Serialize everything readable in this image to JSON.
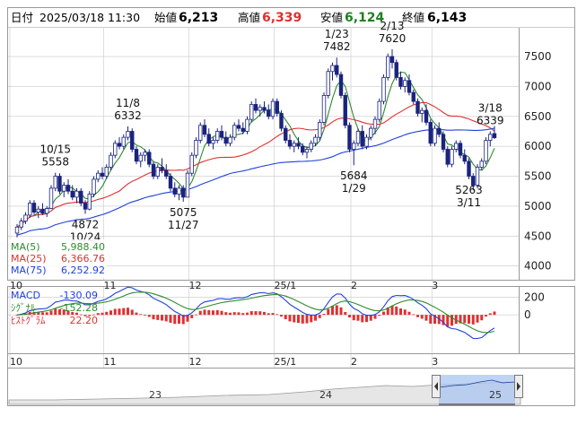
{
  "header": {
    "date_label": "日付",
    "datetime": "2025/03/18 11:30",
    "open_label": "始値",
    "open_value": "6,213",
    "high_label": "高値",
    "high_value": "6,339",
    "low_label": "安値",
    "low_value": "6,124",
    "close_label": "終値",
    "close_value": "6,143"
  },
  "legend_ma": [
    {
      "label": "MA(5)",
      "value": "5,988.40",
      "color": "#2e8b2e"
    },
    {
      "label": "MA(25)",
      "value": "6,366.76",
      "color": "#e03030"
    },
    {
      "label": "MA(75)",
      "value": "6,252.92",
      "color": "#2040e0"
    }
  ],
  "legend_macd": [
    {
      "label": "MACD",
      "value": "-130.09",
      "color": "#2040e0"
    },
    {
      "label": "ｼｸﾞﾅﾙ",
      "value": "-152.28",
      "color": "#2e8b2e"
    },
    {
      "label": "ﾋｽﾄｸﾞﾗﾑ",
      "value": "22.20",
      "color": "#e03030"
    }
  ],
  "colors": {
    "up": "#ffffff",
    "down": "#1a237e",
    "candle_outline": "#1a237e",
    "hist": "#e03030",
    "grid": "#c8c8c8",
    "nav_fill": "#aac4f0"
  },
  "chart_data": {
    "type": "candlestick",
    "price_axis": {
      "ticks": [
        4000,
        4500,
        5000,
        5500,
        6000,
        6500,
        7000,
        7500
      ],
      "ylim": [
        3800,
        7950
      ]
    },
    "macd_axis": {
      "ticks": [
        0,
        200
      ],
      "ylim": [
        -420,
        300
      ]
    },
    "month_labels": [
      {
        "label": "10",
        "index": 0
      },
      {
        "label": "11",
        "index": 22
      },
      {
        "label": "12",
        "index": 42
      },
      {
        "label": "25/1",
        "index": 62
      },
      {
        "label": "2",
        "index": 80
      },
      {
        "label": "3",
        "index": 99
      }
    ],
    "navigator_labels": [
      "23",
      "24",
      "25"
    ],
    "annotations": [
      {
        "date": "10/15",
        "value": "5558",
        "index": 9,
        "side": "above"
      },
      {
        "date": "10/24",
        "value": "4872",
        "index": 16,
        "side": "below"
      },
      {
        "date": "11/8",
        "value": "6332",
        "index": 26,
        "side": "above"
      },
      {
        "date": "11/27",
        "value": "5075",
        "index": 39,
        "side": "below"
      },
      {
        "date": "1/23",
        "value": "7482",
        "index": 75,
        "side": "above"
      },
      {
        "date": "1/29",
        "value": "5684",
        "index": 79,
        "side": "below"
      },
      {
        "date": "2/13",
        "value": "7620",
        "index": 88,
        "side": "above"
      },
      {
        "date": "3/11",
        "value": "5263",
        "index": 106,
        "side": "below"
      },
      {
        "date": "3/18",
        "value": "6339",
        "index": 111,
        "side": "above"
      }
    ],
    "candles": [
      [
        4550,
        4700,
        4480,
        4650
      ],
      [
        4650,
        4800,
        4600,
        4750
      ],
      [
        4750,
        4900,
        4700,
        4850
      ],
      [
        4850,
        5100,
        4800,
        5050
      ],
      [
        5050,
        5100,
        4850,
        4900
      ],
      [
        4900,
        5000,
        4800,
        4950
      ],
      [
        4950,
        5050,
        4850,
        4880
      ],
      [
        4880,
        5000,
        4820,
        4960
      ],
      [
        4960,
        5350,
        4950,
        5300
      ],
      [
        5300,
        5558,
        5250,
        5500
      ],
      [
        5500,
        5550,
        5200,
        5250
      ],
      [
        5250,
        5400,
        5150,
        5350
      ],
      [
        5350,
        5450,
        5200,
        5250
      ],
      [
        5250,
        5350,
        5100,
        5150
      ],
      [
        5150,
        5300,
        5050,
        5250
      ],
      [
        5250,
        5300,
        5000,
        5050
      ],
      [
        5050,
        5100,
        4872,
        4950
      ],
      [
        4950,
        5250,
        4930,
        5200
      ],
      [
        5200,
        5500,
        5150,
        5450
      ],
      [
        5450,
        5600,
        5400,
        5550
      ],
      [
        5550,
        5650,
        5450,
        5500
      ],
      [
        5500,
        5700,
        5450,
        5650
      ],
      [
        5650,
        5900,
        5600,
        5850
      ],
      [
        5850,
        6100,
        5800,
        6050
      ],
      [
        6050,
        6150,
        5950,
        6000
      ],
      [
        6000,
        6200,
        5950,
        6150
      ],
      [
        6150,
        6332,
        6100,
        6250
      ],
      [
        6250,
        6300,
        5900,
        5950
      ],
      [
        5950,
        6000,
        5700,
        5750
      ],
      [
        5750,
        5900,
        5650,
        5850
      ],
      [
        5850,
        5950,
        5750,
        5900
      ],
      [
        5900,
        5950,
        5650,
        5700
      ],
      [
        5700,
        5750,
        5450,
        5500
      ],
      [
        5500,
        5700,
        5450,
        5650
      ],
      [
        5650,
        5800,
        5550,
        5600
      ],
      [
        5600,
        5700,
        5450,
        5500
      ],
      [
        5500,
        5550,
        5250,
        5300
      ],
      [
        5300,
        5400,
        5150,
        5200
      ],
      [
        5200,
        5350,
        5100,
        5300
      ],
      [
        5300,
        5350,
        5075,
        5150
      ],
      [
        5150,
        5600,
        5150,
        5550
      ],
      [
        5550,
        5900,
        5500,
        5850
      ],
      [
        5850,
        6150,
        5800,
        6100
      ],
      [
        6100,
        6400,
        6050,
        6350
      ],
      [
        6350,
        6450,
        6150,
        6200
      ],
      [
        6200,
        6300,
        6000,
        6050
      ],
      [
        6050,
        6150,
        5950,
        6100
      ],
      [
        6100,
        6300,
        6050,
        6250
      ],
      [
        6250,
        6350,
        6100,
        6150
      ],
      [
        6150,
        6250,
        6000,
        6050
      ],
      [
        6050,
        6200,
        6000,
        6150
      ],
      [
        6150,
        6400,
        6100,
        6350
      ],
      [
        6350,
        6450,
        6250,
        6300
      ],
      [
        6300,
        6400,
        6200,
        6250
      ],
      [
        6250,
        6500,
        6200,
        6450
      ],
      [
        6450,
        6750,
        6400,
        6700
      ],
      [
        6700,
        6800,
        6550,
        6600
      ],
      [
        6600,
        6700,
        6500,
        6650
      ],
      [
        6650,
        6750,
        6550,
        6600
      ],
      [
        6600,
        6700,
        6450,
        6500
      ],
      [
        6500,
        6800,
        6450,
        6750
      ],
      [
        6750,
        6800,
        6500,
        6550
      ],
      [
        6550,
        6600,
        6250,
        6300
      ],
      [
        6300,
        6350,
        6050,
        6100
      ],
      [
        6100,
        6200,
        5950,
        6000
      ],
      [
        6000,
        6100,
        5900,
        6050
      ],
      [
        6050,
        6150,
        5950,
        6000
      ],
      [
        6000,
        6050,
        5850,
        5900
      ],
      [
        5900,
        6000,
        5800,
        5950
      ],
      [
        5950,
        6100,
        5900,
        6050
      ],
      [
        6050,
        6200,
        6000,
        6150
      ],
      [
        6150,
        6450,
        6100,
        6400
      ],
      [
        6400,
        6900,
        6350,
        6850
      ],
      [
        6850,
        7300,
        6800,
        7250
      ],
      [
        7250,
        7400,
        7100,
        7350
      ],
      [
        7350,
        7482,
        7150,
        7200
      ],
      [
        7200,
        7250,
        6800,
        6850
      ],
      [
        6850,
        6900,
        6300,
        6350
      ],
      [
        6350,
        6400,
        5900,
        5950
      ],
      [
        5950,
        6100,
        5684,
        6050
      ],
      [
        6050,
        6300,
        6000,
        6250
      ],
      [
        6250,
        6350,
        5950,
        6000
      ],
      [
        6000,
        6200,
        5950,
        6150
      ],
      [
        6150,
        6350,
        6100,
        6300
      ],
      [
        6300,
        6500,
        6200,
        6450
      ],
      [
        6450,
        6800,
        6400,
        6750
      ],
      [
        6750,
        7200,
        6700,
        7150
      ],
      [
        7150,
        7550,
        7100,
        7500
      ],
      [
        7500,
        7620,
        7300,
        7400
      ],
      [
        7400,
        7450,
        7100,
        7150
      ],
      [
        7150,
        7250,
        6950,
        7000
      ],
      [
        7000,
        7150,
        6900,
        7100
      ],
      [
        7100,
        7200,
        6850,
        6900
      ],
      [
        6900,
        6950,
        6700,
        6750
      ],
      [
        6750,
        6800,
        6500,
        6550
      ],
      [
        6550,
        6650,
        6400,
        6600
      ],
      [
        6600,
        6700,
        6350,
        6400
      ],
      [
        6400,
        6450,
        6000,
        6050
      ],
      [
        6050,
        6350,
        6000,
        6300
      ],
      [
        6300,
        6400,
        6150,
        6200
      ],
      [
        6200,
        6250,
        5900,
        5950
      ],
      [
        5950,
        6000,
        5650,
        5700
      ],
      [
        5700,
        6000,
        5650,
        5950
      ],
      [
        5950,
        6100,
        5900,
        6050
      ],
      [
        6050,
        6100,
        5800,
        5850
      ],
      [
        5850,
        5950,
        5700,
        5750
      ],
      [
        5750,
        5800,
        5450,
        5500
      ],
      [
        5500,
        5550,
        5263,
        5350
      ],
      [
        5350,
        5700,
        5300,
        5650
      ],
      [
        5650,
        5800,
        5600,
        5750
      ],
      [
        5750,
        6150,
        5700,
        6100
      ],
      [
        6100,
        6250,
        6000,
        6200
      ],
      [
        6213,
        6339,
        6124,
        6143
      ]
    ]
  }
}
